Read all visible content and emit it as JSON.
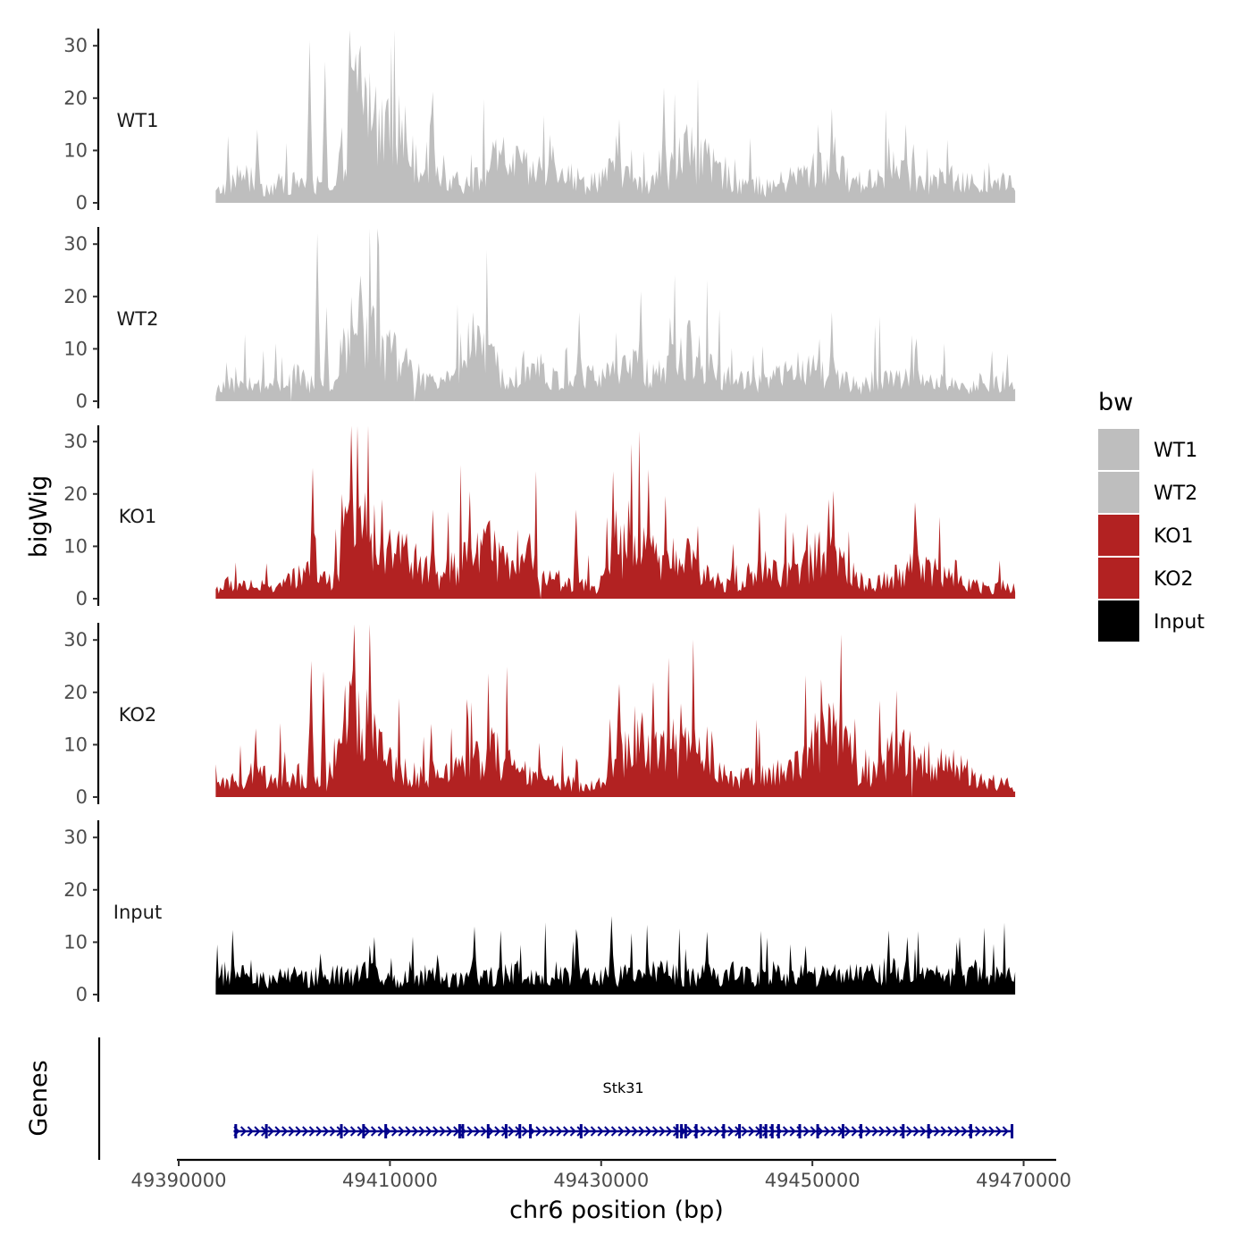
{
  "chart_data": {
    "type": "area",
    "title": "",
    "xlabel": "chr6 position (bp)",
    "ylabel": "bigWig",
    "genes_label": "Genes",
    "xlim": [
      49390000,
      49473000
    ],
    "ylim": [
      0,
      33
    ],
    "x_ticks": [
      49390000,
      49410000,
      49430000,
      49450000,
      49470000
    ],
    "x_tick_labels": [
      "49390000",
      "49410000",
      "49430000",
      "49450000",
      "49470000"
    ],
    "y_ticks": [
      0,
      10,
      20,
      30
    ],
    "y_tick_labels": [
      "0",
      "10",
      "20",
      "30"
    ],
    "region": [
      49393500,
      49469200
    ],
    "legend": {
      "title": "bw",
      "position": "right",
      "entries": [
        {
          "label": "WT1",
          "color": "#bebebe"
        },
        {
          "label": "WT2",
          "color": "#bebebe"
        },
        {
          "label": "KO1",
          "color": "#b22222"
        },
        {
          "label": "KO2",
          "color": "#b22222"
        },
        {
          "label": "Input",
          "color": "#000000"
        }
      ]
    },
    "series": [
      {
        "name": "WT1",
        "color": "#bebebe",
        "baseline": [
          2,
          4,
          6,
          4,
          3,
          4,
          4,
          5,
          3,
          2,
          14,
          25,
          18,
          14,
          15,
          11,
          8,
          7,
          5,
          4,
          5,
          8,
          9,
          8,
          6,
          7,
          9,
          6,
          4,
          5,
          6,
          6,
          4,
          3,
          5,
          8,
          11,
          9,
          7,
          6,
          4,
          4,
          3,
          4,
          5,
          6,
          7,
          7,
          6,
          4,
          5,
          6,
          7,
          6,
          4,
          4,
          5,
          4,
          4,
          3,
          4,
          4
        ],
        "peaks": [
          {
            "x": 49397400,
            "y": 14
          },
          {
            "x": 49402400,
            "y": 31
          },
          {
            "x": 49403800,
            "y": 27
          },
          {
            "x": 49406300,
            "y": 26
          },
          {
            "x": 49409900,
            "y": 20
          },
          {
            "x": 49413900,
            "y": 17
          },
          {
            "x": 49425100,
            "y": 13
          },
          {
            "x": 49431700,
            "y": 16
          },
          {
            "x": 49435900,
            "y": 22
          },
          {
            "x": 49451900,
            "y": 18
          },
          {
            "x": 49458900,
            "y": 15
          }
        ]
      },
      {
        "name": "WT2",
        "color": "#bebebe",
        "baseline": [
          2,
          3,
          4,
          3,
          3,
          4,
          5,
          4,
          2,
          3,
          13,
          18,
          14,
          10,
          9,
          6,
          4,
          3,
          7,
          11,
          10,
          8,
          6,
          7,
          8,
          6,
          4,
          4,
          5,
          5,
          6,
          6,
          7,
          6,
          6,
          8,
          11,
          9,
          6,
          5,
          4,
          4,
          4,
          5,
          6,
          7,
          6,
          5,
          4,
          3,
          4,
          5,
          5,
          5,
          5,
          4,
          4,
          3,
          3,
          4,
          3,
          3
        ],
        "peaks": [
          {
            "x": 49403100,
            "y": 32
          },
          {
            "x": 49404000,
            "y": 18
          },
          {
            "x": 49417800,
            "y": 17
          },
          {
            "x": 49427900,
            "y": 17
          },
          {
            "x": 49433800,
            "y": 21
          },
          {
            "x": 49436500,
            "y": 16
          },
          {
            "x": 49451800,
            "y": 17
          },
          {
            "x": 49459800,
            "y": 12
          }
        ],
        "gaps": [
          {
            "x": 49400700
          },
          {
            "x": 49412300
          }
        ]
      },
      {
        "name": "KO1",
        "color": "#b22222",
        "baseline": [
          2,
          3,
          3,
          3,
          2,
          3,
          4,
          5,
          4,
          4,
          13,
          18,
          14,
          11,
          10,
          8,
          6,
          4,
          6,
          8,
          9,
          10,
          7,
          6,
          8,
          6,
          4,
          3,
          3,
          2,
          6,
          10,
          11,
          9,
          7,
          8,
          8,
          6,
          4,
          3,
          4,
          5,
          6,
          5,
          5,
          7,
          10,
          9,
          6,
          4,
          3,
          4,
          5,
          7,
          7,
          6,
          4,
          3,
          3,
          2,
          3,
          2
        ],
        "peaks": [
          {
            "x": 49402700,
            "y": 25
          },
          {
            "x": 49405500,
            "y": 20
          },
          {
            "x": 49409300,
            "y": 19
          },
          {
            "x": 49414000,
            "y": 17
          },
          {
            "x": 49419500,
            "y": 15
          },
          {
            "x": 49427600,
            "y": 17
          },
          {
            "x": 49431400,
            "y": 17
          },
          {
            "x": 49451600,
            "y": 19
          },
          {
            "x": 49459900,
            "y": 13
          }
        ],
        "gaps": [
          {
            "x": 49424300
          }
        ]
      },
      {
        "name": "KO2",
        "color": "#b22222",
        "baseline": [
          2,
          3,
          4,
          5,
          4,
          4,
          3,
          3,
          3,
          3,
          16,
          18,
          13,
          8,
          6,
          5,
          4,
          4,
          5,
          7,
          8,
          9,
          8,
          6,
          4,
          4,
          3,
          3,
          2,
          3,
          3,
          9,
          12,
          11,
          9,
          8,
          10,
          11,
          8,
          5,
          4,
          4,
          5,
          5,
          6,
          9,
          12,
          13,
          11,
          5,
          4,
          8,
          10,
          9,
          8,
          7,
          8,
          6,
          4,
          3,
          3,
          2
        ],
        "peaks": [
          {
            "x": 49402500,
            "y": 26
          },
          {
            "x": 49403700,
            "y": 24
          },
          {
            "x": 49413900,
            "y": 14
          },
          {
            "x": 49430900,
            "y": 15
          },
          {
            "x": 49434900,
            "y": 22
          },
          {
            "x": 49451500,
            "y": 18
          },
          {
            "x": 49454000,
            "y": 15
          }
        ],
        "gaps": [
          {
            "x": 49459500
          }
        ]
      },
      {
        "name": "Input",
        "color": "#000000",
        "baseline": [
          4,
          4,
          4,
          3,
          3,
          4,
          4,
          3,
          4,
          4,
          4,
          5,
          4,
          4,
          3,
          4,
          4,
          4,
          3,
          4,
          4,
          4,
          4,
          5,
          4,
          4,
          5,
          4,
          4,
          3,
          4,
          4,
          4,
          4,
          5,
          4,
          4,
          4,
          4,
          4,
          5,
          4,
          4,
          4,
          4,
          4,
          4,
          4,
          4,
          4,
          4,
          4,
          5,
          4,
          4,
          4,
          4,
          4,
          4,
          4,
          4,
          4
        ],
        "peaks": [
          {
            "x": 49418000,
            "y": 13
          },
          {
            "x": 49431000,
            "y": 15
          },
          {
            "x": 49440000,
            "y": 12
          },
          {
            "x": 49459000,
            "y": 11
          },
          {
            "x": 49464000,
            "y": 11
          },
          {
            "x": 49408500,
            "y": 11
          }
        ]
      }
    ],
    "gene": {
      "name": "Stk31",
      "strand": "+",
      "color": "#00008b",
      "start": 49395200,
      "end": 49469000,
      "exons": [
        49395400,
        49398300,
        49405400,
        49407500,
        49409600,
        49416600,
        49416900,
        49419300,
        49421000,
        49422300,
        49423300,
        49428100,
        49437200,
        49437600,
        49438000,
        49439000,
        49441600,
        49443100,
        49445100,
        49445600,
        49446200,
        49446800,
        49448800,
        49450500,
        49452900,
        49454600,
        49458600,
        49461000,
        49465000,
        49468900
      ]
    }
  }
}
